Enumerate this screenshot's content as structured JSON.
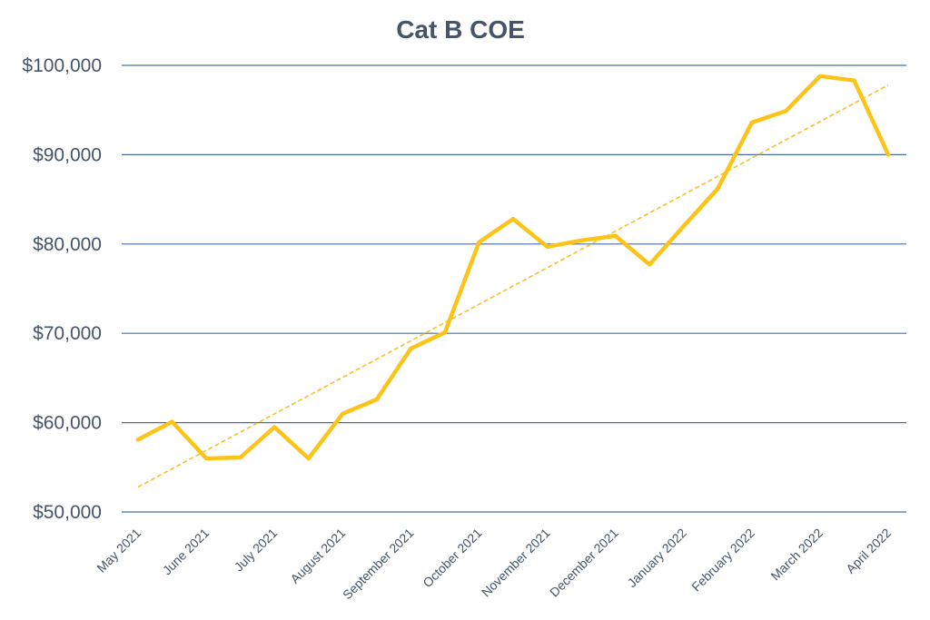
{
  "chart_data": {
    "type": "line",
    "title": "Cat B COE",
    "xlabel": "",
    "ylabel": "",
    "ylim": [
      50000,
      100000
    ],
    "yticks": [
      50000,
      60000,
      70000,
      80000,
      90000,
      100000
    ],
    "ytick_labels": [
      "$50,000",
      "$60,000",
      "$70,000",
      "$80,000",
      "$90,000",
      "$100,000"
    ],
    "x_tick_labels": [
      "May 2021",
      "June 2021",
      "July 2021",
      "August 2021",
      "September 2021",
      "October 2021",
      "November 2021",
      "December 2021",
      "January 2022",
      "February 2022",
      "March 2022",
      "April 2022"
    ],
    "grid": true,
    "series": [
      {
        "name": "Cat B COE",
        "values": [
          58100,
          60100,
          56000,
          56100,
          59500,
          56000,
          61000,
          62600,
          68300,
          70100,
          80200,
          82800,
          79700,
          80400,
          80900,
          77700,
          82000,
          86200,
          93600,
          94900,
          98800,
          98300,
          90000
        ]
      }
    ],
    "trendline": {
      "name": "Linear trend",
      "start": 52800,
      "end": 97800
    },
    "colors": {
      "series": "#fcc419",
      "trend": "#f5c12c",
      "grid": "#4a6fa5",
      "text": "#44546a"
    }
  }
}
